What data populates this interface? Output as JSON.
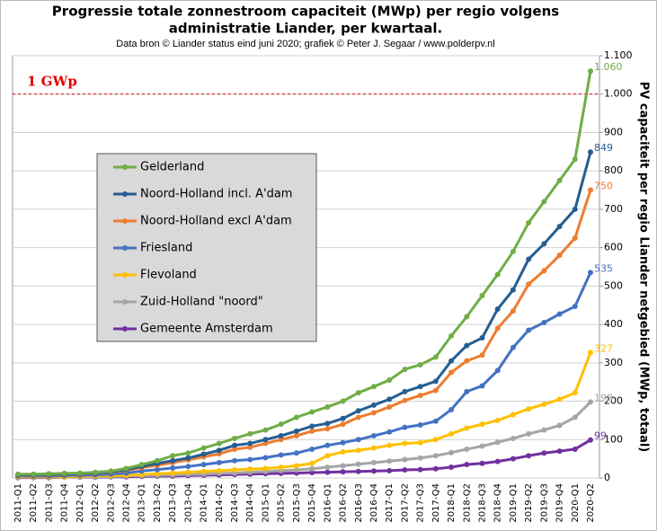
{
  "chart_data": {
    "type": "line",
    "title": [
      "Progressie totale zonnestroom capaciteit (MWp) per regio volgens",
      "administratie  Liander, per kwartaal."
    ],
    "subtitle": "Data bron © Liander status eind juni 2020; grafiek © Peter J. Segaar / www.polderpv.nl",
    "y_axis_label": "PV capaciteit per regio Liander netgebied (MWp, totaal)",
    "reference_line": {
      "value": 1000,
      "label": "1 GWp",
      "color": "#e00000"
    },
    "categories": [
      "2011-Q1",
      "2011-Q2",
      "2011-Q3",
      "2011-Q4",
      "2012-Q1",
      "2012-Q2",
      "2012-Q3",
      "2012-Q4",
      "2013-Q1",
      "2013-Q2",
      "2013-Q3",
      "2013-Q4",
      "2014-Q1",
      "2014-Q2",
      "2014-Q3",
      "2014-Q4",
      "2015-Q1",
      "2015-Q2",
      "2015-Q3",
      "2015-Q4",
      "2016-Q1",
      "2016-Q2",
      "2016-Q3",
      "2016-Q4",
      "2017-Q1",
      "2017-Q2",
      "2017-Q3",
      "2017-Q4",
      "2018-Q1",
      "2018-Q2",
      "2018-Q3",
      "2018-Q4",
      "2019-Q1",
      "2019-Q2",
      "2019-Q3",
      "2019-Q4",
      "2020-Q1",
      "2020-Q2"
    ],
    "series": [
      {
        "name": "Gelderland",
        "color": "#70ad47",
        "values": [
          10,
          10,
          11,
          12,
          13,
          15,
          18,
          25,
          35,
          45,
          58,
          65,
          78,
          90,
          103,
          115,
          125,
          140,
          158,
          172,
          185,
          200,
          222,
          238,
          255,
          283,
          295,
          315,
          370,
          420,
          475,
          530,
          590,
          665,
          720,
          775,
          830,
          1060
        ],
        "value_labels": [
          null,
          null,
          null,
          null,
          null,
          null,
          null,
          null,
          null,
          null,
          null,
          null,
          null,
          null,
          null,
          null,
          null,
          null,
          null,
          null,
          null,
          null,
          null,
          null,
          null,
          null,
          null,
          null,
          null,
          null,
          null,
          null,
          null,
          null,
          null,
          null,
          null,
          "1.060"
        ]
      },
      {
        "name": "Noord-Holland incl. A'dam",
        "color": "#255e91",
        "values": [
          8,
          8,
          9,
          10,
          11,
          13,
          16,
          22,
          30,
          38,
          45,
          52,
          62,
          72,
          85,
          90,
          100,
          110,
          122,
          135,
          142,
          155,
          175,
          190,
          205,
          225,
          238,
          252,
          305,
          345,
          365,
          440,
          490,
          570,
          610,
          655,
          700,
          849
        ]
      },
      {
        "name": "Noord-Holland excl A'dam",
        "color": "#ed7d31",
        "values": [
          7,
          7,
          8,
          9,
          10,
          12,
          15,
          20,
          27,
          33,
          40,
          47,
          55,
          63,
          75,
          80,
          90,
          100,
          110,
          122,
          128,
          140,
          158,
          170,
          185,
          202,
          215,
          228,
          275,
          305,
          320,
          390,
          435,
          505,
          540,
          580,
          625,
          750
        ]
      },
      {
        "name": "Friesland",
        "color": "#4472c4",
        "values": [
          5,
          5,
          5,
          6,
          7,
          8,
          10,
          13,
          18,
          22,
          26,
          30,
          35,
          40,
          45,
          48,
          53,
          60,
          65,
          75,
          85,
          92,
          100,
          110,
          120,
          132,
          138,
          148,
          178,
          225,
          240,
          280,
          340,
          385,
          405,
          427,
          447,
          535
        ]
      },
      {
        "name": "Flevoland",
        "color": "#ffc000",
        "values": [
          3,
          3,
          3,
          3,
          4,
          5,
          6,
          7,
          9,
          11,
          13,
          15,
          17,
          19,
          21,
          23,
          25,
          28,
          32,
          38,
          58,
          68,
          72,
          78,
          85,
          90,
          92,
          100,
          115,
          130,
          140,
          150,
          165,
          180,
          192,
          205,
          222,
          327
        ]
      },
      {
        "name": "Zuid-Holland \"noord\"",
        "color": "#a5a5a5",
        "values": [
          2,
          2,
          2,
          2,
          3,
          3,
          4,
          5,
          6,
          7,
          8,
          9,
          10,
          12,
          13,
          15,
          17,
          19,
          21,
          24,
          28,
          32,
          36,
          40,
          44,
          48,
          52,
          58,
          66,
          75,
          83,
          93,
          103,
          115,
          125,
          137,
          158,
          198
        ]
      },
      {
        "name": "Gemeente Amsterdam",
        "color": "#7030a0",
        "values": [
          1,
          1,
          1,
          2,
          2,
          2,
          3,
          3,
          4,
          5,
          5,
          6,
          7,
          8,
          9,
          10,
          11,
          12,
          13,
          14,
          15,
          16,
          17,
          18,
          19,
          21,
          22,
          24,
          28,
          35,
          38,
          43,
          50,
          58,
          65,
          70,
          75,
          99
        ]
      }
    ],
    "ylim": [
      0,
      1100
    ],
    "yticks": [
      0,
      100,
      200,
      300,
      400,
      500,
      600,
      700,
      800,
      900,
      {
        "value": 1000,
        "label": "1.000"
      },
      {
        "value": 1100,
        "label": "1.100"
      }
    ],
    "grid": true
  }
}
